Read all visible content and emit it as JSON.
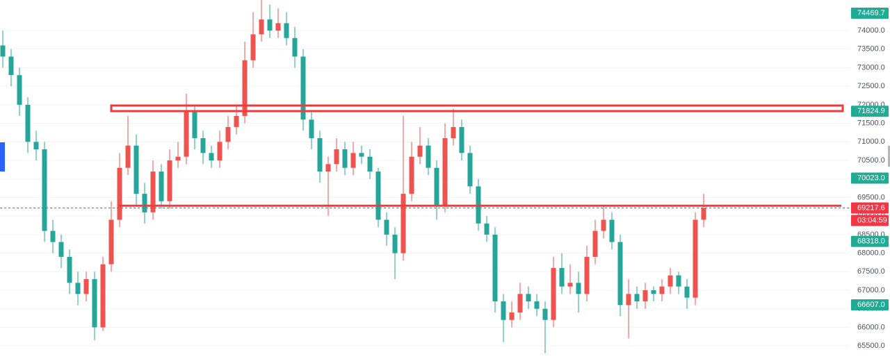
{
  "chart_data": {
    "type": "candlestick",
    "ylim": [
      65240,
      74825
    ],
    "yticks": [
      {
        "value": 65500,
        "label": "65500.0"
      },
      {
        "value": 66000,
        "label": "66000.0"
      },
      {
        "value": 66500,
        "label": "66500.0"
      },
      {
        "value": 67000,
        "label": "67000.0"
      },
      {
        "value": 67500,
        "label": "67500.0"
      },
      {
        "value": 68000,
        "label": "68000.0"
      },
      {
        "value": 68500,
        "label": "68500.0"
      },
      {
        "value": 69000,
        "label": "69000.0"
      },
      {
        "value": 69500,
        "label": "69500.0"
      },
      {
        "value": 70000,
        "label": "70000.0"
      },
      {
        "value": 70500,
        "label": "70500.0"
      },
      {
        "value": 71000,
        "label": "71000.0"
      },
      {
        "value": 71500,
        "label": "71500.0"
      },
      {
        "value": 72000,
        "label": "72000.0"
      },
      {
        "value": 72500,
        "label": "72500.0"
      },
      {
        "value": 73000,
        "label": "73000.0"
      },
      {
        "value": 73500,
        "label": "73500.0"
      },
      {
        "value": 74000,
        "label": "74000.0"
      }
    ],
    "grid": true,
    "up_color": "#ef5350",
    "down_color": "#26a69a",
    "open": [
      73600,
      73300,
      72800,
      72000,
      71000,
      70800,
      68600,
      68300,
      67900,
      67200,
      66900,
      67300,
      66000,
      67700,
      68900,
      70300,
      70900,
      69600,
      69100,
      70200,
      69400,
      70500,
      70600,
      71800,
      71100,
      70700,
      70500,
      71000,
      71400,
      71700,
      73200,
      73900,
      74300,
      74000,
      74200,
      73800,
      73300,
      71600,
      71100,
      70200,
      70400,
      70800,
      70300,
      70700,
      70600,
      70200,
      68900,
      68500,
      68000,
      69600,
      70600,
      70900,
      70300,
      69300,
      71100,
      71400,
      70700,
      69800,
      68800,
      68500,
      66700,
      66200,
      66400,
      66900,
      66700,
      66500,
      66200,
      67600,
      67100,
      67200,
      66900,
      67900,
      68600,
      68900,
      68300,
      66600,
      66900,
      66700,
      67000,
      66900,
      67100,
      67400,
      67100,
      66800,
      68900
    ],
    "high": [
      74000,
      73500,
      73000,
      72200,
      71300,
      71000,
      68900,
      68500,
      68100,
      67500,
      67500,
      67500,
      67900,
      69400,
      70700,
      71700,
      71200,
      69900,
      70500,
      70400,
      70800,
      71000,
      72300,
      72000,
      71300,
      70900,
      71300,
      71700,
      72000,
      73700,
      74500,
      74900,
      74700,
      74600,
      74500,
      74100,
      73500,
      71800,
      71300,
      70600,
      71100,
      71000,
      71000,
      70900,
      70800,
      70300,
      69100,
      68700,
      71700,
      71000,
      71400,
      71100,
      70500,
      71500,
      71900,
      71600,
      70900,
      70000,
      69000,
      68700,
      66900,
      66700,
      67200,
      67100,
      66900,
      66700,
      67900,
      68000,
      67700,
      67500,
      68200,
      68900,
      69300,
      69100,
      68500,
      67300,
      67100,
      67200,
      67100,
      67300,
      67600,
      67500,
      67300,
      69100,
      69600
    ],
    "low": [
      73000,
      72500,
      71700,
      70700,
      70500,
      68300,
      68000,
      67600,
      66900,
      66600,
      66700,
      65650,
      65900,
      67500,
      68700,
      70100,
      69300,
      68800,
      68900,
      69200,
      69200,
      70300,
      70400,
      70800,
      70400,
      70300,
      70300,
      70800,
      71200,
      71500,
      73000,
      73700,
      73800,
      73800,
      73600,
      73000,
      71300,
      70800,
      69900,
      69000,
      70200,
      70100,
      70100,
      70400,
      70000,
      68700,
      68200,
      67300,
      67800,
      69400,
      70400,
      70100,
      68900,
      69100,
      70900,
      70500,
      69600,
      68600,
      68300,
      66400,
      65600,
      66000,
      66200,
      66500,
      66300,
      65300,
      66000,
      66900,
      66900,
      66400,
      66700,
      67700,
      68400,
      68100,
      66300,
      65700,
      66500,
      66500,
      66700,
      66700,
      66900,
      66900,
      66500,
      66600,
      68700
    ],
    "close": [
      73300,
      72800,
      72000,
      71000,
      70800,
      68600,
      68300,
      67900,
      67200,
      66900,
      67300,
      66000,
      67700,
      68900,
      70300,
      70900,
      69600,
      69100,
      70200,
      69400,
      70500,
      70600,
      71800,
      71100,
      70700,
      70500,
      71000,
      71400,
      71700,
      73200,
      73900,
      74300,
      74000,
      74200,
      73800,
      73300,
      71600,
      71100,
      70200,
      70400,
      70800,
      70300,
      70700,
      70600,
      70200,
      68900,
      68500,
      68000,
      69600,
      70600,
      70900,
      70300,
      69300,
      71100,
      71400,
      70700,
      69800,
      68800,
      68500,
      66700,
      66200,
      66400,
      66900,
      66700,
      66500,
      66200,
      67600,
      67100,
      67200,
      66900,
      67900,
      68600,
      68900,
      68300,
      66600,
      66900,
      66700,
      67000,
      66900,
      67100,
      67400,
      67100,
      66800,
      68900,
      69217.6
    ],
    "zones": [
      {
        "low": 71830,
        "high": 71980,
        "color": "#ef3b3b"
      }
    ],
    "levels": [
      {
        "value": 69280,
        "color": "#ef3b3b"
      }
    ],
    "last_price": 69217.6,
    "countdown": "03:04:59",
    "price_labels": [
      {
        "value": 74469.7,
        "label": "74469.7",
        "color": "#22ab94"
      },
      {
        "value": 71824.9,
        "label": "71824.9",
        "color": "#22ab94"
      },
      {
        "value": 70023.0,
        "label": "70023.0",
        "color": "#22ab94"
      },
      {
        "value": 69217.6,
        "label": "69217.6",
        "color": "#f23645"
      },
      {
        "value": 68318.0,
        "label": "68318.0",
        "color": "#22ab94"
      },
      {
        "value": 66607.0,
        "label": "66607.0",
        "color": "#22ab94"
      }
    ]
  }
}
